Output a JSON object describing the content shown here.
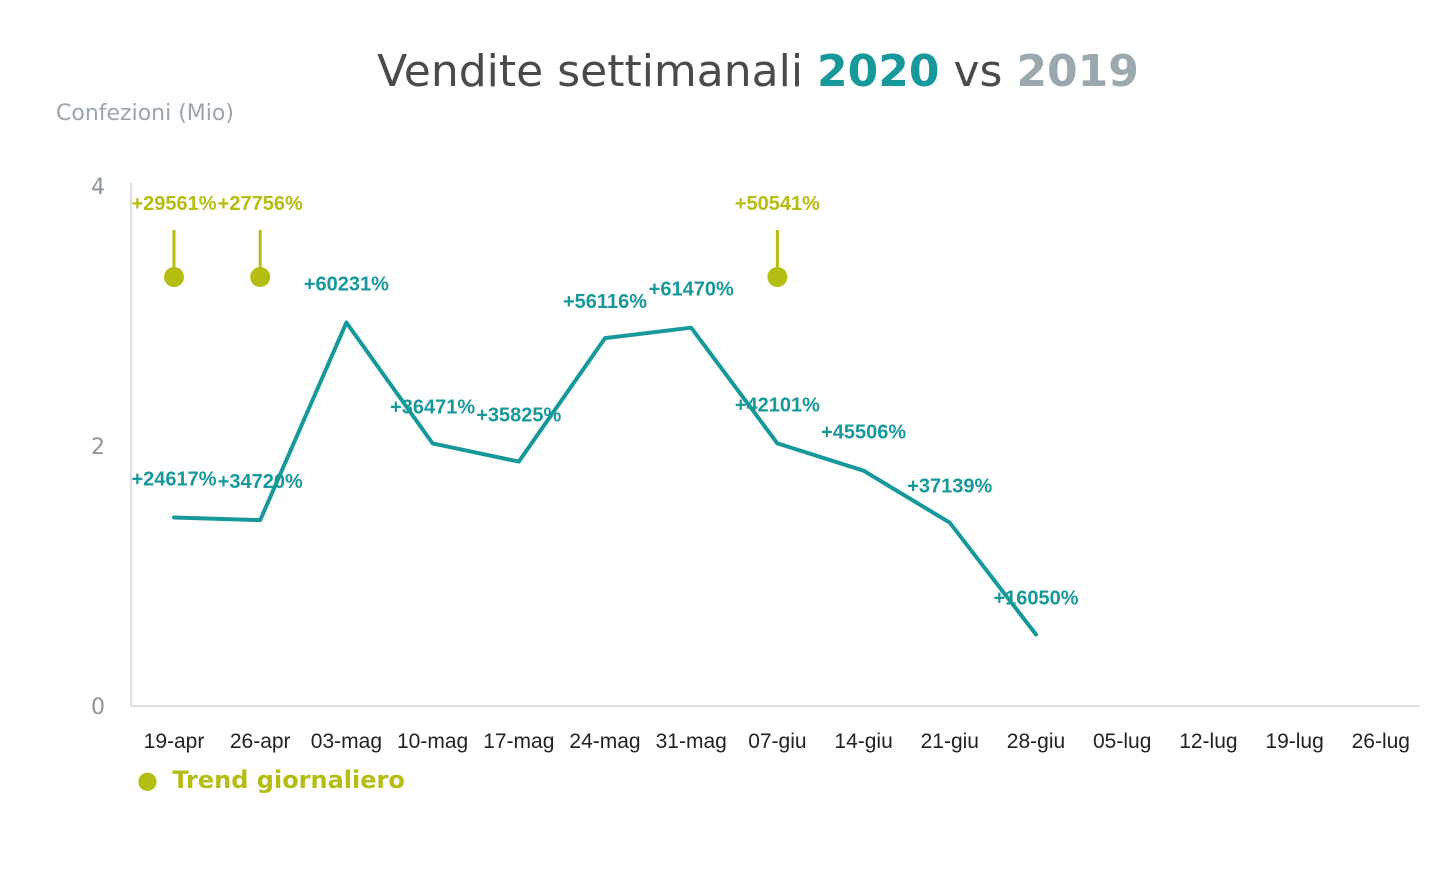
{
  "chart_data": {
    "type": "line",
    "title": {
      "prefix": "Vendite settimanali ",
      "highlight_2020": "2020",
      "middle": " vs ",
      "highlight_2019": "2019"
    },
    "ylabel": "Confezioni (Mio)",
    "xlabel": "",
    "ylim": [
      0,
      4
    ],
    "yticks": [
      "0",
      "2",
      "4"
    ],
    "categories": [
      "19-apr",
      "26-apr",
      "03-mag",
      "10-mag",
      "17-mag",
      "24-mag",
      "31-mag",
      "07-giu",
      "14-giu",
      "21-giu",
      "28-giu",
      "05-lug",
      "12-lug",
      "19-lug",
      "26-lug"
    ],
    "series": [
      {
        "type": "line",
        "values": [
          1.45,
          1.43,
          2.95,
          2.02,
          1.88,
          2.83,
          2.91,
          2.02,
          1.81,
          1.41,
          0.55,
          null,
          null,
          null,
          null
        ],
        "labels": [
          "+24617%",
          "+34720%",
          "+60231%",
          "+36471%",
          "+35825%",
          "+56116%",
          "+61470%",
          "+42101%",
          "+45506%",
          "+37139%",
          "+16050%",
          null,
          null,
          null,
          null
        ]
      },
      {
        "name": "Trend giornaliero",
        "type": "marker",
        "values": [
          3.3,
          3.3,
          null,
          null,
          null,
          null,
          null,
          3.3,
          null,
          null,
          null,
          null,
          null,
          null,
          null
        ],
        "labels": [
          "+29561%",
          "+27756%",
          null,
          null,
          null,
          null,
          null,
          "+50541%",
          null,
          null,
          null,
          null,
          null,
          null,
          null
        ]
      }
    ],
    "legend": {
      "position": "bottom-left",
      "marker": "●"
    },
    "grid": false,
    "colors": {
      "line": "#17989b",
      "trend": "#b5bd12",
      "title_2020": "#17989b",
      "title_2019": "#9ba8ae",
      "axis": "#d0d4d6"
    }
  }
}
